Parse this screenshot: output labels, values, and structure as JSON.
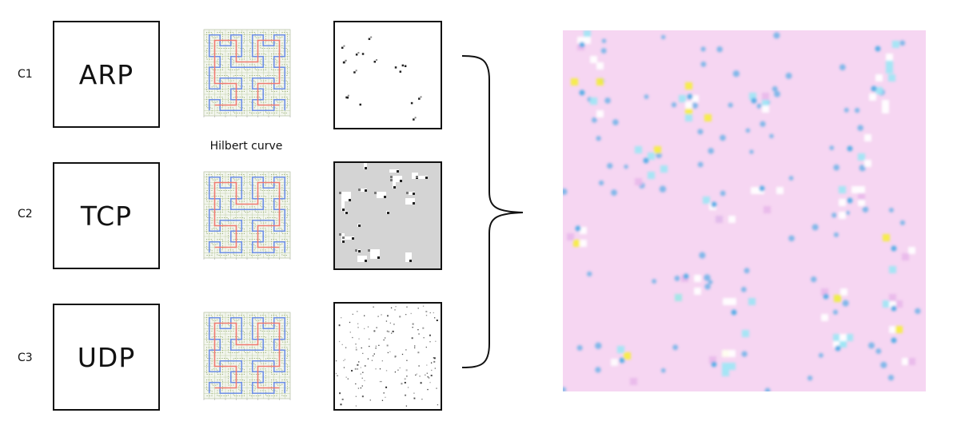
{
  "rows": [
    {
      "label": "C1",
      "protocol": "ARP"
    },
    {
      "label": "C2",
      "protocol": "TCP"
    },
    {
      "label": "C3",
      "protocol": "UDP"
    }
  ],
  "hilbert_caption": "Hilbert curve",
  "colors": {
    "box_border": "#111111",
    "hilbert_grid": "#bfcfa5",
    "hilbert_red": "#f07a70",
    "hilbert_blue": "#6d8fe6",
    "tcp_background": "#d4d4d4",
    "fused_background": "#f6d6f2",
    "fused_blue": "#5aaee6",
    "fused_yellow": "#f5ee3c",
    "fused_cyan": "#9ee6f5"
  },
  "icons": [
    "curly-brace-icon"
  ]
}
